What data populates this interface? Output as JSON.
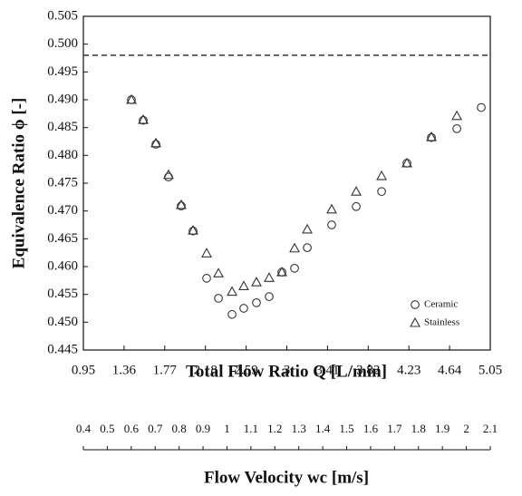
{
  "chart_data": {
    "type": "scatter",
    "x_label": "Total Flow Ratio Q [L/min]",
    "y_label": "Equivalence Ratio ϕ [-]",
    "x2_label": "Flow Velocity wc [m/s]",
    "xlim": [
      0.95,
      5.05
    ],
    "xticks": [
      0.95,
      1.36,
      1.77,
      2.18,
      2.59,
      3,
      3.41,
      3.82,
      4.23,
      4.64,
      5.05
    ],
    "ylim": [
      0.445,
      0.505
    ],
    "yticks": [
      0.445,
      {
        "value": 0.45,
        "label": "0.450"
      },
      0.455,
      {
        "value": 0.46,
        "label": "0.460"
      },
      0.465,
      {
        "value": 0.47,
        "label": "0.470"
      },
      0.475,
      {
        "value": 0.48,
        "label": "0.480"
      },
      0.485,
      {
        "value": 0.49,
        "label": "0.490"
      },
      0.495,
      {
        "value": 0.5,
        "label": "0.500"
      },
      0.505
    ],
    "x2lim": [
      0.4,
      2.1
    ],
    "x2ticks": [
      0.4,
      0.5,
      0.6,
      0.7,
      0.8,
      0.9,
      1,
      1.1,
      1.2,
      1.3,
      1.4,
      1.5,
      1.6,
      1.7,
      1.8,
      1.9,
      2,
      2.1
    ],
    "reference_line": 0.498,
    "legend_position": "lower right",
    "series": [
      {
        "name": "Ceramic",
        "marker": "circle",
        "color": "#333333",
        "x": [
          1.434,
          1.553,
          1.681,
          1.808,
          1.936,
          2.055,
          2.192,
          2.311,
          2.448,
          2.566,
          2.694,
          2.822,
          2.95,
          3.078,
          3.206,
          3.452,
          3.699,
          3.955,
          4.21,
          4.457,
          4.713,
          4.959
        ],
        "values": [
          0.49,
          0.4863,
          0.482,
          0.4761,
          0.4709,
          0.4664,
          0.4579,
          0.4543,
          0.4514,
          0.4525,
          0.4535,
          0.4546,
          0.459,
          0.4597,
          0.4634,
          0.4675,
          0.4708,
          0.4735,
          0.4786,
          0.4832,
          0.4848,
          0.4886
        ]
      },
      {
        "name": "Stainless",
        "marker": "triangle",
        "color": "#333333",
        "x": [
          1.434,
          1.553,
          1.681,
          1.808,
          1.936,
          2.055,
          2.192,
          2.311,
          2.448,
          2.566,
          2.694,
          2.822,
          2.95,
          3.078,
          3.206,
          3.452,
          3.699,
          3.955,
          4.21,
          4.457,
          4.713
        ],
        "values": [
          0.49,
          0.4864,
          0.4822,
          0.4765,
          0.4711,
          0.4665,
          0.4624,
          0.4588,
          0.4555,
          0.4565,
          0.4572,
          0.458,
          0.459,
          0.4633,
          0.4667,
          0.4703,
          0.4735,
          0.4763,
          0.4786,
          0.4833,
          0.4871
        ]
      }
    ]
  }
}
